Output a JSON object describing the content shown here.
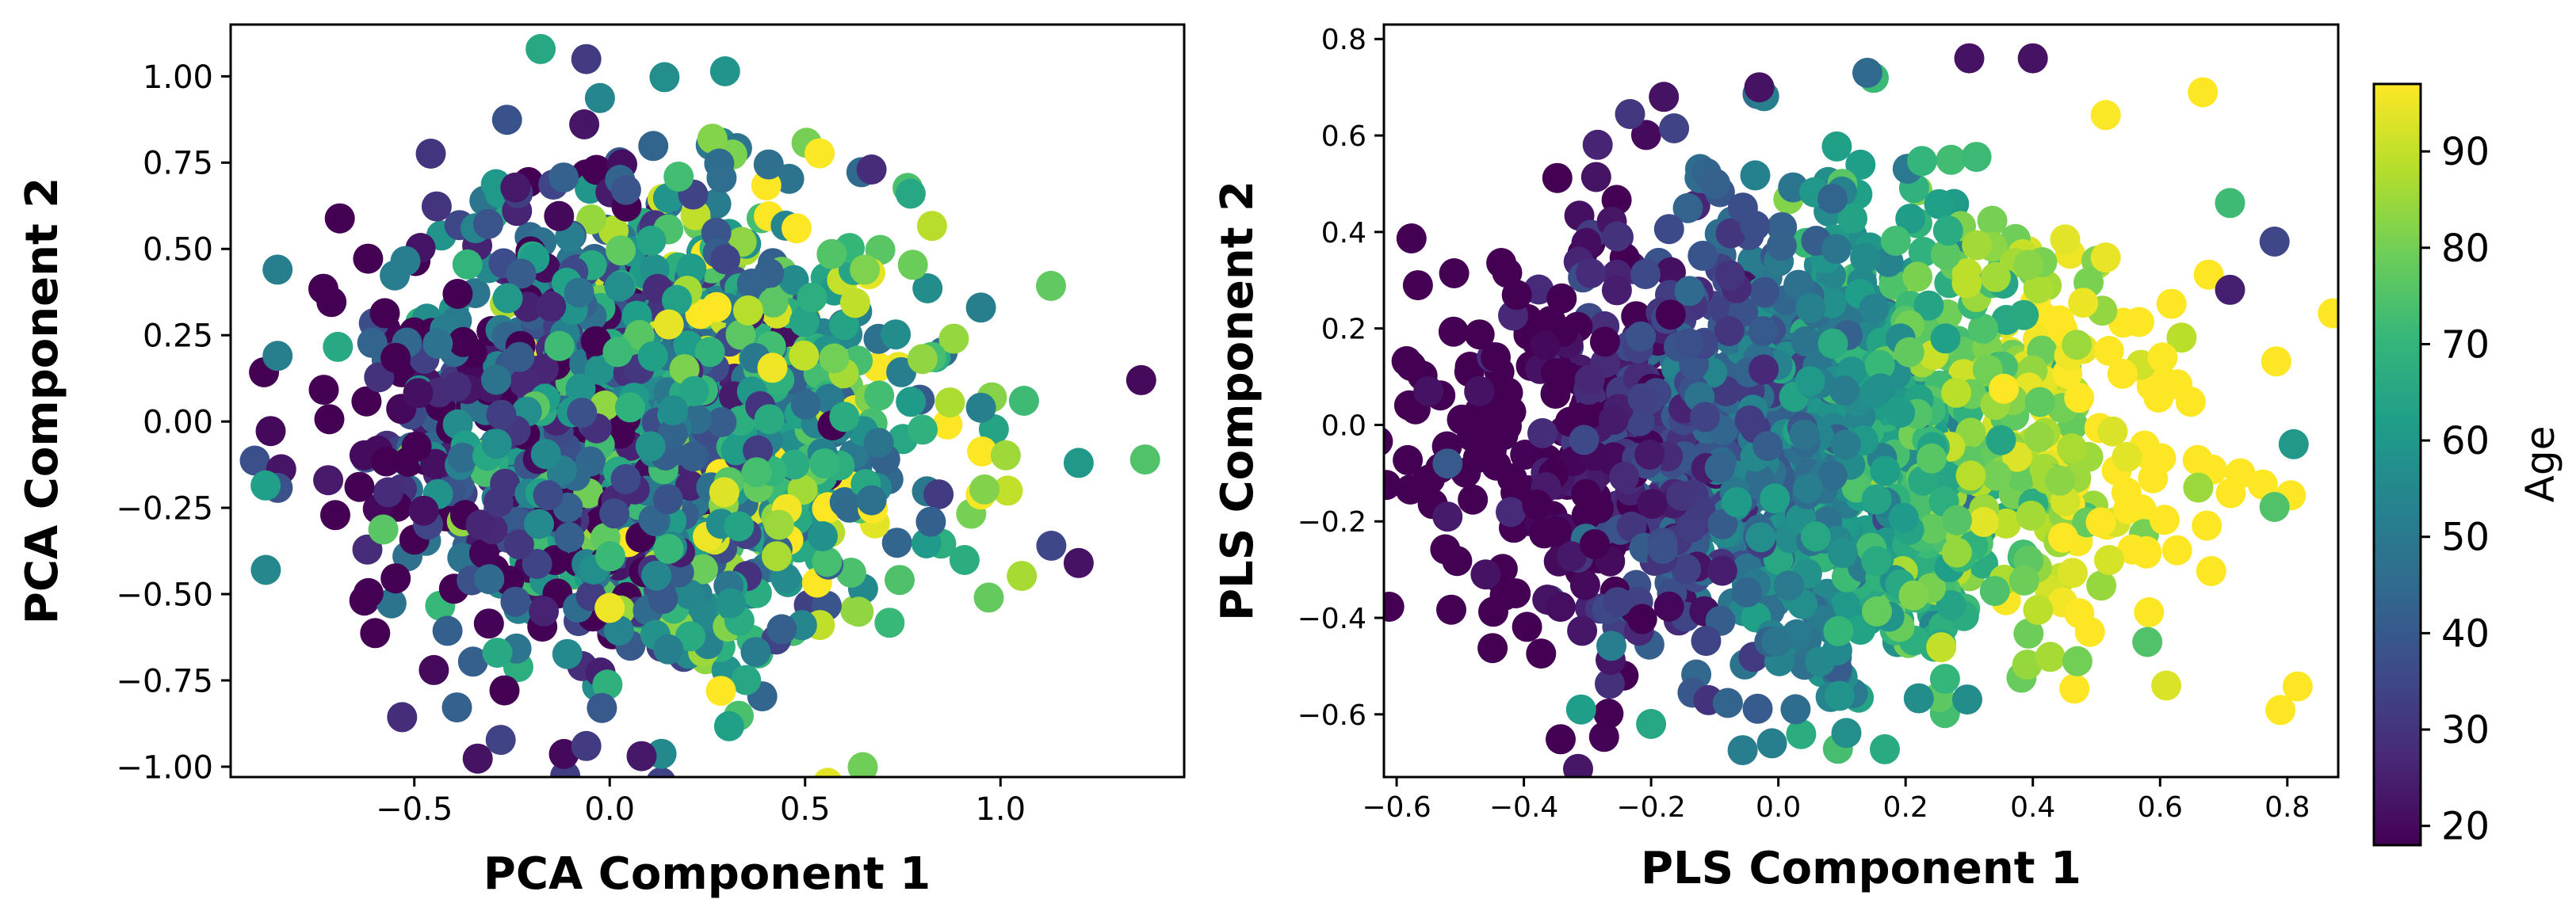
{
  "chart_data": [
    {
      "type": "scatter",
      "title": "",
      "xlabel": "PCA Component 1",
      "ylabel": "PCA Component 2",
      "xlim": [
        -0.97,
        1.47
      ],
      "ylim": [
        -1.03,
        1.15
      ],
      "xticks": [
        -0.5,
        0.0,
        0.5,
        1.0
      ],
      "xtick_labels": [
        "−0.5",
        "0.0",
        "0.5",
        "1.0"
      ],
      "yticks": [
        -1.0,
        -0.75,
        -0.5,
        -0.25,
        0.0,
        0.25,
        0.5,
        0.75,
        1.0
      ],
      "ytick_labels": [
        "−1.00",
        "−0.75",
        "−0.50",
        "−0.25",
        "0.00",
        "0.25",
        "0.50",
        "0.75",
        "1.00"
      ],
      "color_by": "Age",
      "point_cloud": {
        "n": 1500,
        "center_x": 0.1,
        "center_y": 0.0,
        "spread_x": 0.32,
        "spread_y": 0.33,
        "age_trend_x": 35,
        "age_noise": 20,
        "age_mean": 52
      },
      "highlighted_points": [
        {
          "x": -0.06,
          "y": 1.05,
          "age": 32
        },
        {
          "x": -0.06,
          "y": -0.94,
          "age": 32
        },
        {
          "x": 1.36,
          "y": 0.12,
          "age": 20
        },
        {
          "x": 1.37,
          "y": -0.11,
          "age": 75
        },
        {
          "x": -0.88,
          "y": -0.43,
          "age": 55
        },
        {
          "x": -0.85,
          "y": 0.44,
          "age": 52
        },
        {
          "x": 1.2,
          "y": -0.41,
          "age": 22
        },
        {
          "x": 1.2,
          "y": -0.12,
          "age": 60
        },
        {
          "x": 1.13,
          "y": -0.36,
          "age": 35
        },
        {
          "x": 0.97,
          "y": -0.51,
          "age": 78
        },
        {
          "x": 0.95,
          "y": 0.04,
          "age": 52
        },
        {
          "x": 1.06,
          "y": 0.06,
          "age": 72
        },
        {
          "x": 0.0,
          "y": -0.54,
          "age": 95
        },
        {
          "x": 0.15,
          "y": -0.66,
          "age": 52
        },
        {
          "x": -0.45,
          "y": -0.72,
          "age": 20
        },
        {
          "x": -0.02,
          "y": -0.83,
          "age": 40
        },
        {
          "x": 0.67,
          "y": 0.73,
          "age": 28
        },
        {
          "x": 0.77,
          "y": 0.66,
          "age": 65
        },
        {
          "x": -0.85,
          "y": 0.19,
          "age": 52
        },
        {
          "x": 0.95,
          "y": 0.33,
          "age": 52
        }
      ]
    },
    {
      "type": "scatter",
      "title": "",
      "xlabel": "PLS Component 1",
      "ylabel": "PLS Component 2",
      "xlim": [
        -0.62,
        0.88
      ],
      "ylim": [
        -0.73,
        0.83
      ],
      "xticks": [
        -0.6,
        -0.4,
        -0.2,
        0.0,
        0.2,
        0.4,
        0.6,
        0.8
      ],
      "xtick_labels": [
        "−0.6",
        "−0.4",
        "−0.2",
        "0.0",
        "0.2",
        "0.4",
        "0.6",
        "0.8"
      ],
      "yticks": [
        -0.6,
        -0.4,
        -0.2,
        0.0,
        0.2,
        0.4,
        0.6,
        0.8
      ],
      "ytick_labels": [
        "−0.6",
        "−0.4",
        "−0.2",
        "0.0",
        "0.2",
        "0.4",
        "0.6",
        "0.8"
      ],
      "color_by": "Age",
      "point_cloud": {
        "n": 1500,
        "center_x": 0.05,
        "center_y": -0.03,
        "spread_x": 0.26,
        "spread_y": 0.24,
        "age_trend_x": 90,
        "age_noise": 9,
        "age_mean": 54
      },
      "highlighted_points": [
        {
          "x": -0.55,
          "y": 0.07,
          "age": 22
        },
        {
          "x": -0.47,
          "y": 0.07,
          "age": 22
        },
        {
          "x": -0.52,
          "y": -0.19,
          "age": 24
        },
        {
          "x": -0.52,
          "y": -0.08,
          "age": 40
        },
        {
          "x": -0.46,
          "y": -0.31,
          "age": 22
        },
        {
          "x": -0.03,
          "y": 0.7,
          "age": 22
        },
        {
          "x": -0.18,
          "y": 0.68,
          "age": 22
        },
        {
          "x": 0.3,
          "y": 0.76,
          "age": 22
        },
        {
          "x": 0.4,
          "y": 0.76,
          "age": 22
        },
        {
          "x": 0.14,
          "y": 0.73,
          "age": 45
        },
        {
          "x": 0.78,
          "y": 0.38,
          "age": 35
        },
        {
          "x": 0.71,
          "y": 0.28,
          "age": 25
        },
        {
          "x": 0.81,
          "y": -0.04,
          "age": 60
        },
        {
          "x": 0.78,
          "y": -0.17,
          "age": 75
        },
        {
          "x": 0.71,
          "y": 0.46,
          "age": 72
        },
        {
          "x": 0.66,
          "y": -0.13,
          "age": 85
        },
        {
          "x": -0.31,
          "y": -0.59,
          "age": 62
        },
        {
          "x": -0.2,
          "y": -0.62,
          "age": 65
        },
        {
          "x": -0.01,
          "y": -0.66,
          "age": 52
        },
        {
          "x": 0.58,
          "y": -0.45,
          "age": 75
        },
        {
          "x": 0.47,
          "y": -0.49,
          "age": 80
        },
        {
          "x": 0.52,
          "y": -0.28,
          "age": 92
        }
      ]
    }
  ],
  "colorbar": {
    "label": "Age",
    "min": 18,
    "max": 97,
    "ticks": [
      20,
      30,
      40,
      50,
      60,
      70,
      80,
      90
    ],
    "tick_labels": [
      "20",
      "30",
      "40",
      "50",
      "60",
      "70",
      "80",
      "90"
    ],
    "colormap": "viridis",
    "stops": [
      "#440154",
      "#482777",
      "#3e4989",
      "#31688e",
      "#26828e",
      "#1f9e89",
      "#35b779",
      "#6ece58",
      "#b5de2b",
      "#fde725"
    ]
  }
}
